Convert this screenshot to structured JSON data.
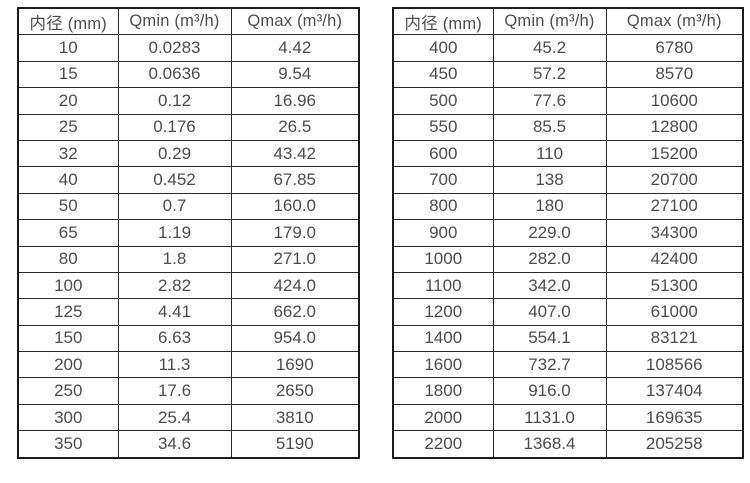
{
  "tables": [
    {
      "name": "small-diameter-flow-table",
      "headers": [
        "内径 (mm)",
        "Qmin (m³/h)",
        "Qmax (m³/h)"
      ],
      "rows": [
        [
          "10",
          "0.0283",
          "4.42"
        ],
        [
          "15",
          "0.0636",
          "9.54"
        ],
        [
          "20",
          "0.12",
          "16.96"
        ],
        [
          "25",
          "0.176",
          "26.5"
        ],
        [
          "32",
          "0.29",
          "43.42"
        ],
        [
          "40",
          "0.452",
          "67.85"
        ],
        [
          "50",
          "0.7",
          "160.0"
        ],
        [
          "65",
          "1.19",
          "179.0"
        ],
        [
          "80",
          "1.8",
          "271.0"
        ],
        [
          "100",
          "2.82",
          "424.0"
        ],
        [
          "125",
          "4.41",
          "662.0"
        ],
        [
          "150",
          "6.63",
          "954.0"
        ],
        [
          "200",
          "11.3",
          "1690"
        ],
        [
          "250",
          "17.6",
          "2650"
        ],
        [
          "300",
          "25.4",
          "3810"
        ],
        [
          "350",
          "34.6",
          "5190"
        ]
      ]
    },
    {
      "name": "large-diameter-flow-table",
      "headers": [
        "内径 (mm)",
        "Qmin (m³/h)",
        "Qmax (m³/h)"
      ],
      "rows": [
        [
          "400",
          "45.2",
          "6780"
        ],
        [
          "450",
          "57.2",
          "8570"
        ],
        [
          "500",
          "77.6",
          "10600"
        ],
        [
          "550",
          "85.5",
          "12800"
        ],
        [
          "600",
          "110",
          "15200"
        ],
        [
          "700",
          "138",
          "20700"
        ],
        [
          "800",
          "180",
          "27100"
        ],
        [
          "900",
          "229.0",
          "34300"
        ],
        [
          "1000",
          "282.0",
          "42400"
        ],
        [
          "1100",
          "342.0",
          "51300"
        ],
        [
          "1200",
          "407.0",
          "61000"
        ],
        [
          "1400",
          "554.1",
          "83121"
        ],
        [
          "1600",
          "732.7",
          "108566"
        ],
        [
          "1800",
          "916.0",
          "137404"
        ],
        [
          "2000",
          "1131.0",
          "169635"
        ],
        [
          "2200",
          "1368.4",
          "205258"
        ]
      ]
    }
  ],
  "colors": {
    "background": "#ffffff",
    "border": "#1c1c1c",
    "text": "#4d4d4d"
  }
}
